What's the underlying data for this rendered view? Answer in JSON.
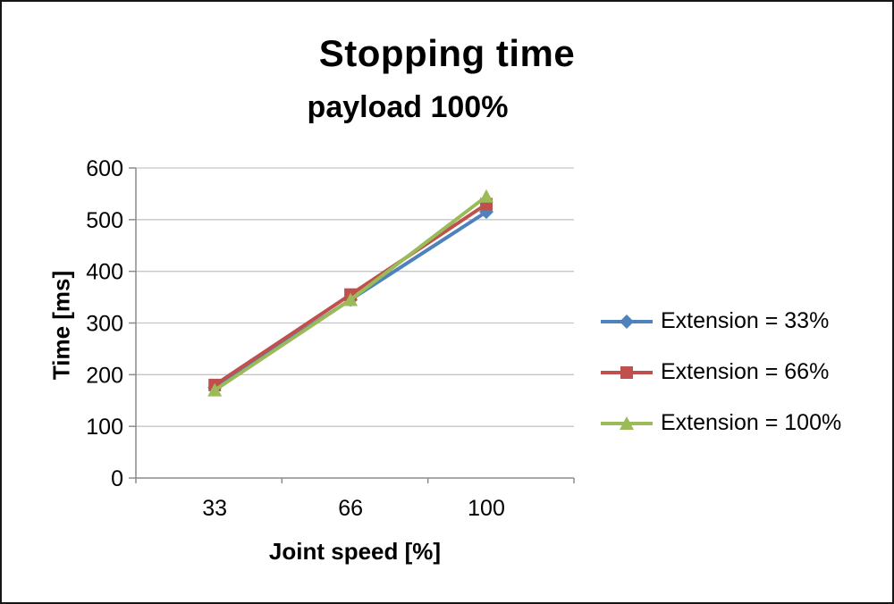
{
  "title": "Stopping time",
  "subtitle": "payload 100%",
  "chart_data": {
    "type": "line",
    "title": "Stopping time",
    "subtitle": "payload 100%",
    "categories": [
      "33",
      "66",
      "100"
    ],
    "xlabel": "Joint speed [%]",
    "ylabel": "Time [ms]",
    "ylim": [
      0,
      600
    ],
    "ytick_interval": 100,
    "ytick_labels": [
      "0",
      "100",
      "200",
      "300",
      "400",
      "500",
      "600"
    ],
    "grid": true,
    "legend_position": "right",
    "series": [
      {
        "name": "Extension = 33%",
        "marker": "diamond",
        "color": "#4F81BD",
        "values": [
          175,
          345,
          515
        ]
      },
      {
        "name": "Extension = 66%",
        "marker": "square",
        "color": "#C0504D",
        "values": [
          180,
          355,
          530
        ]
      },
      {
        "name": "Extension = 100%",
        "marker": "triangle",
        "color": "#9BBB59",
        "values": [
          170,
          345,
          545
        ]
      }
    ],
    "colors": {
      "gridline": "#C6C6C6",
      "axis": "#8C8C8C",
      "tick_label": "#000000",
      "background": "#FFFFFF"
    }
  }
}
